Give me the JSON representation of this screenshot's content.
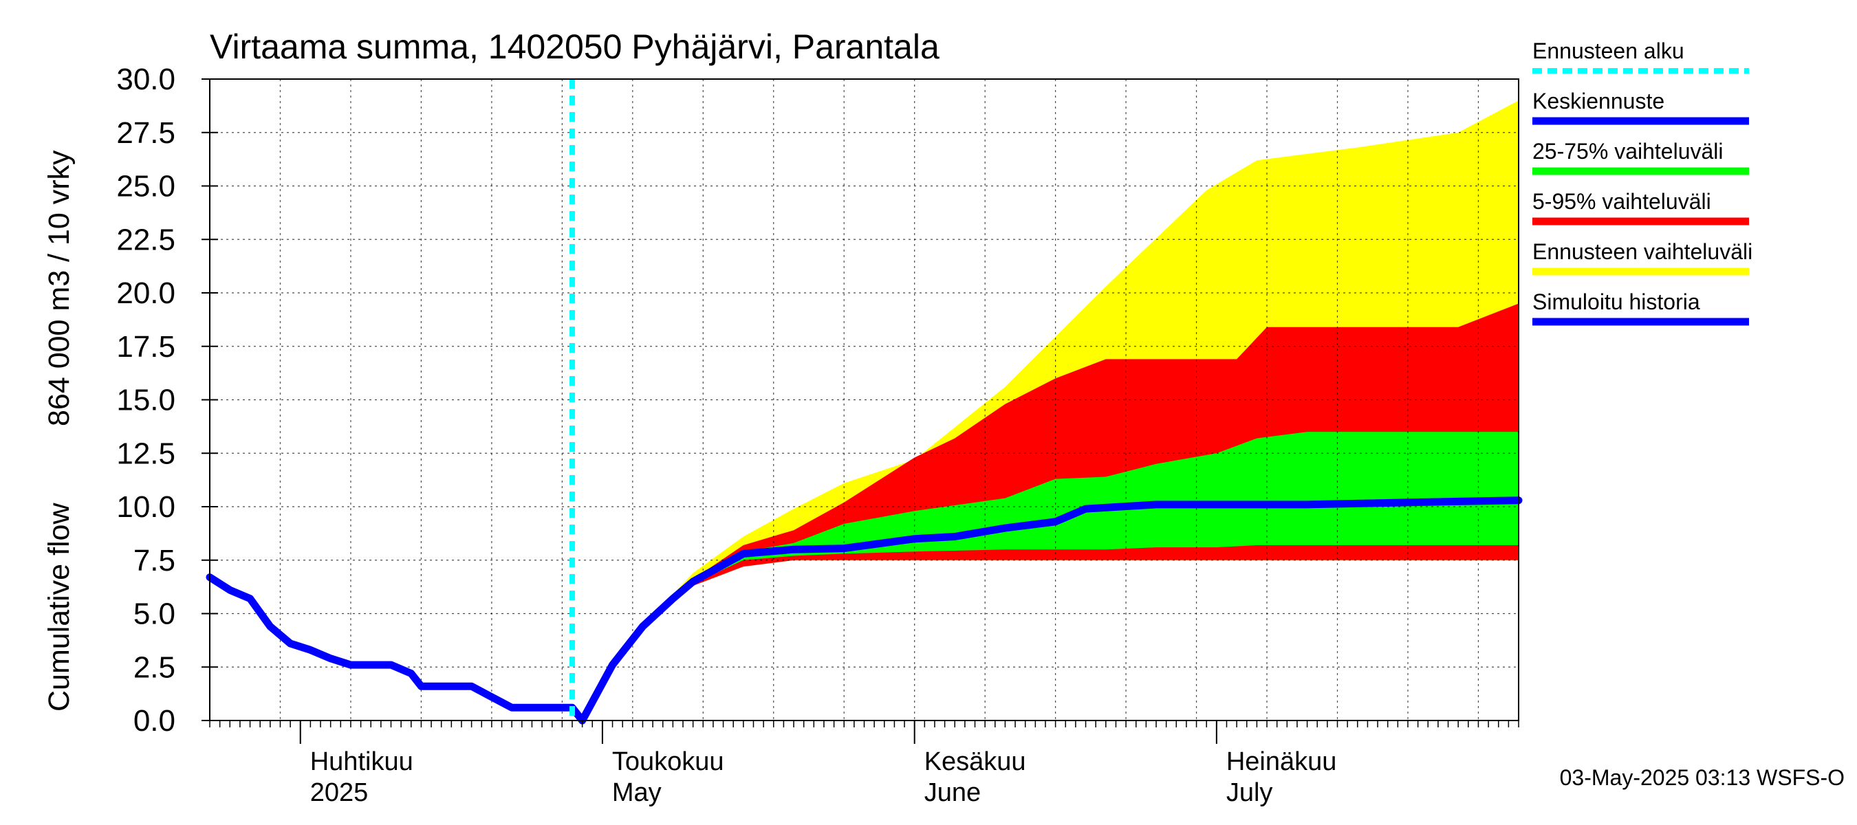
{
  "chart_data": {
    "type": "area",
    "title": "Virtaama summa, 1402050 Pyhäjärvi, Parantala",
    "ylabel_fi": "864 000 m3 / 10 vrky",
    "ylabel_en": "Cumulative flow",
    "ylim": [
      0,
      30
    ],
    "yticks": [
      "0.0",
      "2.5",
      "5.0",
      "7.5",
      "10.0",
      "12.5",
      "15.0",
      "17.5",
      "20.0",
      "22.5",
      "25.0",
      "27.5",
      "30.0"
    ],
    "x_range": [
      "2025-03-23",
      "2025-07-31"
    ],
    "grid": true,
    "months": [
      {
        "fi": "Huhtikuu",
        "en": "2025",
        "date": "2025-04-01"
      },
      {
        "fi": "Toukokuu",
        "en": "May",
        "date": "2025-05-01"
      },
      {
        "fi": "Kesäkuu",
        "en": "June",
        "date": "2025-06-01"
      },
      {
        "fi": "Heinäkuu",
        "en": "July",
        "date": "2025-07-01"
      }
    ],
    "forecast_start": "2025-04-28",
    "series": [
      {
        "name": "Ennusteen vaihteluväli",
        "color": "#ffff00",
        "kind": "band",
        "x": [
          "2025-04-29",
          "2025-05-02",
          "2025-05-05",
          "2025-05-08",
          "2025-05-10",
          "2025-05-15",
          "2025-05-20",
          "2025-05-25",
          "2025-06-01",
          "2025-06-10",
          "2025-06-20",
          "2025-06-30",
          "2025-07-05",
          "2025-07-15",
          "2025-07-25",
          "2025-07-31"
        ],
        "low": [
          0.0,
          2.5,
          4.3,
          5.5,
          6.3,
          7.2,
          7.5,
          7.5,
          7.5,
          7.5,
          7.5,
          7.5,
          7.5,
          7.5,
          7.5,
          7.5
        ],
        "high": [
          0.0,
          2.6,
          4.5,
          5.9,
          6.9,
          8.6,
          9.9,
          11.1,
          12.2,
          15.6,
          20.3,
          24.8,
          26.2,
          26.8,
          27.5,
          29.0
        ]
      },
      {
        "name": "5-95% vaihteluväli",
        "color": "#ff0000",
        "kind": "band",
        "x": [
          "2025-04-29",
          "2025-05-02",
          "2025-05-05",
          "2025-05-08",
          "2025-05-10",
          "2025-05-15",
          "2025-05-20",
          "2025-05-25",
          "2025-06-01",
          "2025-06-05",
          "2025-06-10",
          "2025-06-15",
          "2025-06-20",
          "2025-06-25",
          "2025-07-03",
          "2025-07-06",
          "2025-07-25",
          "2025-07-31"
        ],
        "low": [
          0.0,
          2.5,
          4.3,
          5.5,
          6.3,
          7.2,
          7.5,
          7.5,
          7.5,
          7.5,
          7.5,
          7.5,
          7.5,
          7.5,
          7.5,
          7.5,
          7.5,
          7.5
        ],
        "high": [
          0.0,
          2.5,
          4.4,
          5.8,
          6.6,
          8.2,
          8.9,
          10.2,
          12.3,
          13.2,
          14.8,
          16.0,
          16.9,
          16.9,
          16.9,
          18.4,
          18.4,
          19.5
        ]
      },
      {
        "name": "25-75% vaihteluväli",
        "color": "#00ff00",
        "kind": "band",
        "x": [
          "2025-04-29",
          "2025-05-02",
          "2025-05-05",
          "2025-05-08",
          "2025-05-10",
          "2025-05-15",
          "2025-05-20",
          "2025-05-25",
          "2025-06-01",
          "2025-06-10",
          "2025-06-15",
          "2025-06-20",
          "2025-06-25",
          "2025-07-01",
          "2025-07-05",
          "2025-07-10",
          "2025-07-31"
        ],
        "low": [
          0.0,
          2.5,
          4.3,
          5.5,
          6.4,
          7.5,
          7.7,
          7.8,
          7.9,
          8.0,
          8.0,
          8.0,
          8.1,
          8.1,
          8.2,
          8.2,
          8.2
        ],
        "high": [
          0.0,
          2.5,
          4.3,
          5.7,
          6.5,
          7.9,
          8.3,
          9.2,
          9.8,
          10.4,
          11.3,
          11.4,
          12.0,
          12.5,
          13.2,
          13.5,
          13.5
        ]
      },
      {
        "name": "Keskiennuste",
        "color": "#0000ff",
        "kind": "line",
        "x": [
          "2025-04-29",
          "2025-05-02",
          "2025-05-05",
          "2025-05-08",
          "2025-05-10",
          "2025-05-15",
          "2025-05-20",
          "2025-05-25",
          "2025-06-01",
          "2025-06-05",
          "2025-06-10",
          "2025-06-15",
          "2025-06-18",
          "2025-06-25",
          "2025-07-10",
          "2025-07-20",
          "2025-07-31"
        ],
        "values": [
          0.0,
          2.6,
          4.4,
          5.7,
          6.5,
          7.8,
          8.0,
          8.05,
          8.5,
          8.6,
          9.0,
          9.3,
          9.9,
          10.1,
          10.1,
          10.2,
          10.3
        ]
      },
      {
        "name": "Simuloitu historia",
        "color": "#0000ff",
        "kind": "line",
        "x": [
          "2025-03-23",
          "2025-03-25",
          "2025-03-27",
          "2025-03-29",
          "2025-03-31",
          "2025-04-02",
          "2025-04-04",
          "2025-04-06",
          "2025-04-10",
          "2025-04-12",
          "2025-04-13",
          "2025-04-18",
          "2025-04-20",
          "2025-04-22",
          "2025-04-28",
          "2025-04-29"
        ],
        "values": [
          6.7,
          6.1,
          5.7,
          4.4,
          3.6,
          3.3,
          2.9,
          2.6,
          2.6,
          2.2,
          1.6,
          1.6,
          1.1,
          0.6,
          0.6,
          0.0
        ]
      }
    ],
    "legend": [
      "Ennusteen alku",
      "Keskiennuste",
      "25-75% vaihteluväli",
      "5-95% vaihteluväli",
      "Ennusteen vaihteluväli",
      "Simuloitu historia"
    ],
    "legend_position": "right",
    "footer": "03-May-2025 03:13 WSFS-O"
  }
}
